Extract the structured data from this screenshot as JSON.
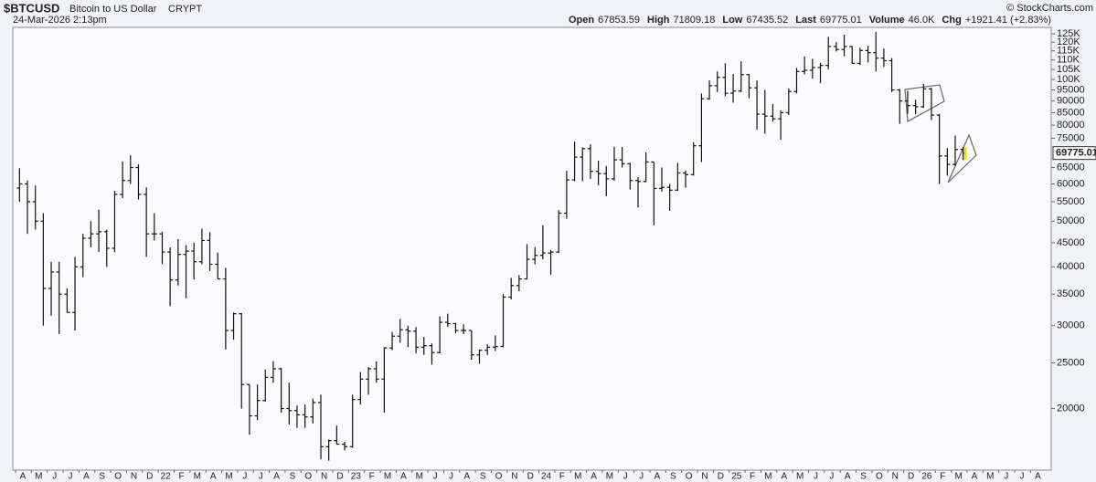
{
  "chart_data": {
    "type": "ohlc",
    "title": "$BTCUSD",
    "subtitle": "Bitcoin to US Dollar",
    "exchange": "CRYPT",
    "date": "24-Mar-2026 2:13pm",
    "watermark": "© StockCharts.com",
    "quote": [
      {
        "label": "Open",
        "value": 67853.59
      },
      {
        "label": "High",
        "value": 71809.18
      },
      {
        "label": "Low",
        "value": 67435.52
      },
      {
        "label": "Last",
        "value": 69775.01
      },
      {
        "label": "Volume",
        "value": "46.0K"
      },
      {
        "label": "Chg",
        "value": "+1921.41 (+2.83%)"
      }
    ],
    "log_scale": true,
    "color": "#111111",
    "marker_color": "#f2e600",
    "ylim": [
      14800,
      129000
    ],
    "yticks": [
      20000,
      25000,
      30000,
      35000,
      40000,
      45000,
      50000,
      55000,
      60000,
      65000,
      75000,
      80000,
      85000,
      90000,
      95000,
      {
        "value": 100000,
        "label": "100K"
      },
      {
        "value": 105000,
        "label": "105K"
      },
      {
        "value": 110000,
        "label": "110K"
      },
      {
        "value": 115000,
        "label": "115K"
      },
      {
        "value": 120000,
        "label": "120K"
      },
      {
        "value": 125000,
        "label": "125K"
      }
    ],
    "month_labels": [
      "A",
      "M",
      "J",
      "J",
      "A",
      "S",
      "O",
      "N",
      "D",
      "22",
      "F",
      "M",
      "A",
      "M",
      "J",
      "J",
      "A",
      "S",
      "O",
      "N",
      "D",
      "23",
      "F",
      "M",
      "A",
      "M",
      "J",
      "J",
      "A",
      "S",
      "O",
      "N",
      "D",
      "24",
      "F",
      "M",
      "A",
      "M",
      "J",
      "J",
      "A",
      "S",
      "O",
      "N",
      "D",
      "25",
      "F",
      "M",
      "A",
      "M",
      "J",
      "J",
      "A",
      "S",
      "O",
      "N",
      "D",
      "26",
      "F",
      "M",
      "A",
      "M",
      "J",
      "J",
      "A"
    ],
    "open": [
      58800,
      60000,
      55000,
      50000,
      36000,
      39000,
      35000,
      32000,
      40000,
      46000,
      47000,
      47500,
      43800,
      57000,
      61000,
      65000,
      57000,
      47000,
      47000,
      43000,
      37500,
      42500,
      43200,
      41000,
      45500,
      40500,
      37700,
      29300,
      31800,
      22500,
      19300,
      20800,
      23300,
      24300,
      20000,
      19800,
      19400,
      19200,
      20600,
      16600,
      17100,
      16800,
      16600,
      20900,
      23100,
      24300,
      23100,
      26900,
      28500,
      29400,
      29200,
      27000,
      27200,
      26300,
      30500,
      30300,
      29300,
      29300,
      26000,
      26600,
      27000,
      27100,
      34500,
      36500,
      37700,
      41500,
      42300,
      42800,
      43000,
      52000,
      61200,
      68400,
      71300,
      63800,
      63100,
      61500,
      67500,
      66200,
      61000,
      60700,
      66800,
      58700,
      59000,
      58200,
      63300,
      62800,
      72300,
      91000,
      97000,
      101000,
      93500,
      94500,
      102400,
      96000,
      84400,
      83600,
      82500,
      85000,
      94300,
      104000,
      104600,
      106000,
      107100,
      117500,
      115800,
      117500,
      108200,
      115200,
      114000,
      111000,
      109600,
      95000,
      90000,
      88000,
      87500,
      95500,
      84000,
      68800,
      66000,
      71000
    ],
    "high": [
      64800,
      61000,
      59500,
      52000,
      41000,
      41000,
      36000,
      42000,
      47000,
      50000,
      52900,
      48000,
      58000,
      67000,
      69000,
      66000,
      59000,
      52000,
      47500,
      44000,
      45800,
      44500,
      45000,
      48200,
      47400,
      42900,
      39800,
      32000,
      31900,
      22500,
      22500,
      24200,
      25200,
      24400,
      22700,
      20300,
      20400,
      21000,
      21400,
      17200,
      18400,
      17000,
      21400,
      23900,
      24500,
      25200,
      27000,
      29100,
      31000,
      30000,
      29800,
      28400,
      27500,
      31400,
      31800,
      30400,
      30200,
      29300,
      26700,
      27400,
      28600,
      35000,
      37900,
      38400,
      44700,
      44000,
      49000,
      43400,
      52800,
      64000,
      73800,
      71700,
      72800,
      67200,
      65500,
      71900,
      71900,
      66500,
      62000,
      70000,
      66800,
      65000,
      60000,
      66500,
      64100,
      73600,
      93400,
      99600,
      104000,
      108300,
      102700,
      109300,
      102700,
      99500,
      95000,
      88700,
      86000,
      95700,
      105800,
      111900,
      110600,
      108500,
      123200,
      120000,
      124500,
      117800,
      116800,
      117900,
      126200,
      116400,
      111000,
      95500,
      94600,
      90600,
      97900,
      96000,
      84500,
      71500,
      76000,
      71809.18
    ],
    "low": [
      55000,
      47000,
      48000,
      30000,
      31500,
      28800,
      32000,
      29300,
      38000,
      44000,
      43000,
      40000,
      43000,
      56000,
      60000,
      55600,
      42000,
      45500,
      40500,
      33000,
      36500,
      34300,
      37600,
      40500,
      39200,
      37700,
      26700,
      28000,
      20000,
      17600,
      18900,
      20700,
      22700,
      19600,
      18500,
      18200,
      18200,
      18600,
      15600,
      15500,
      16800,
      16300,
      16500,
      20400,
      21400,
      22700,
      19600,
      26600,
      27600,
      27000,
      26200,
      26000,
      24800,
      26200,
      29800,
      28900,
      28800,
      25400,
      24900,
      26000,
      26500,
      27000,
      34100,
      35500,
      37600,
      40500,
      41500,
      38500,
      42800,
      50600,
      60800,
      60800,
      61500,
      59600,
      56500,
      61000,
      65000,
      58400,
      53500,
      60500,
      49000,
      57800,
      52600,
      58000,
      58900,
      62500,
      66800,
      90500,
      94000,
      92000,
      89300,
      94000,
      91200,
      78200,
      76700,
      81300,
      74500,
      84000,
      93400,
      102500,
      100400,
      98200,
      105100,
      114700,
      112000,
      108000,
      107300,
      108700,
      104000,
      106300,
      94000,
      80500,
      84500,
      84400,
      87000,
      82000,
      60000,
      62500,
      65500,
      67435.52
    ],
    "close": [
      60000,
      55000,
      50000,
      36000,
      39000,
      35000,
      32000,
      40000,
      46000,
      47000,
      47500,
      43800,
      57000,
      61000,
      65000,
      57000,
      47000,
      47000,
      43000,
      37500,
      42500,
      43200,
      41000,
      45500,
      40500,
      37700,
      29300,
      31800,
      22500,
      19300,
      20800,
      23300,
      24300,
      20000,
      19800,
      19400,
      19200,
      20600,
      16600,
      17100,
      16800,
      16600,
      20900,
      23100,
      24300,
      23100,
      26900,
      28500,
      29400,
      29200,
      27000,
      27200,
      26300,
      30500,
      30300,
      29300,
      29300,
      26000,
      26600,
      27000,
      27100,
      34500,
      36500,
      37700,
      41500,
      42300,
      42800,
      43000,
      52000,
      61200,
      68400,
      71300,
      63800,
      63100,
      61500,
      67500,
      66200,
      61000,
      60700,
      66800,
      58700,
      59000,
      58200,
      63300,
      62800,
      72300,
      91000,
      97000,
      101000,
      93500,
      94500,
      102400,
      96000,
      84400,
      83600,
      82500,
      85000,
      94300,
      104000,
      104600,
      106000,
      107100,
      117500,
      115800,
      117500,
      108200,
      115200,
      114000,
      111000,
      109600,
      95000,
      90000,
      88000,
      87500,
      95500,
      84000,
      68800,
      66000,
      71000,
      69775.01
    ]
  }
}
